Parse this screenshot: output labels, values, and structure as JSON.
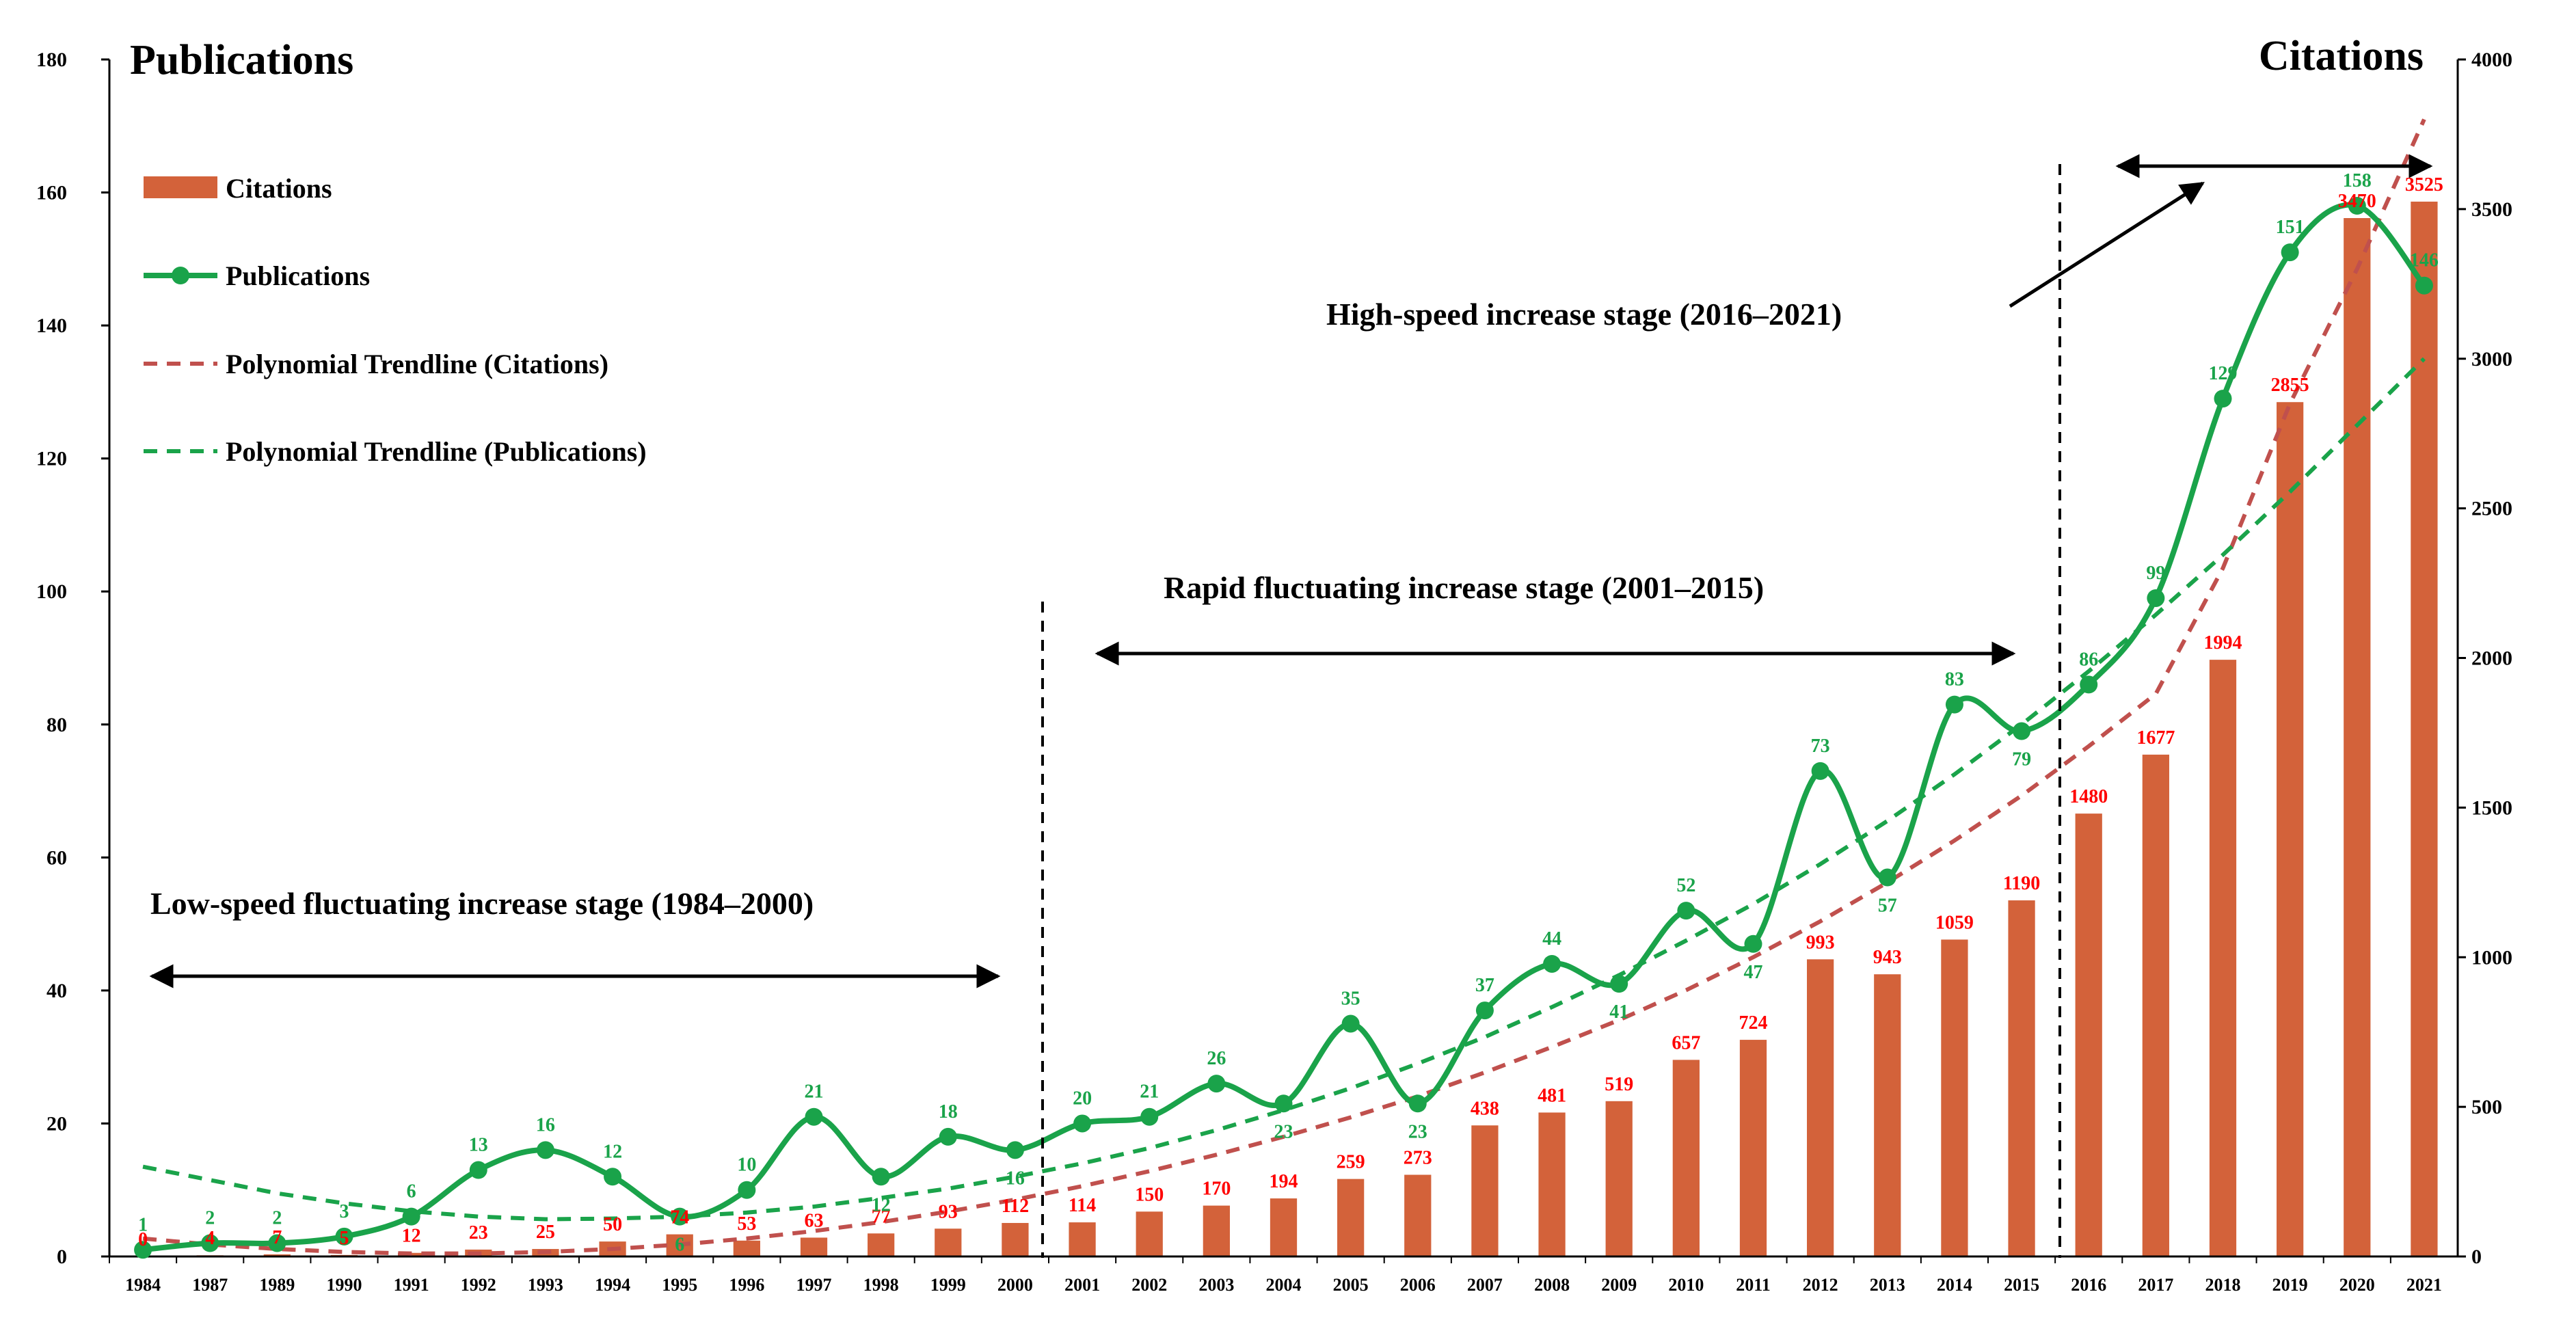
{
  "chart_data": {
    "type": "bar+line",
    "left_axis_title": "Publications",
    "right_axis_title": "Citations",
    "left_ylim": [
      0,
      180
    ],
    "left_ticks": [
      "0",
      "20",
      "40",
      "60",
      "80",
      "100",
      "120",
      "140",
      "160",
      "180"
    ],
    "right_ylim": [
      0,
      4000
    ],
    "right_ticks": [
      "0",
      "500",
      "1000",
      "1500",
      "2000",
      "2500",
      "3000",
      "3500",
      "4000"
    ],
    "categories": [
      "1984",
      "1987",
      "1989",
      "1990",
      "1991",
      "1992",
      "1993",
      "1994",
      "1995",
      "1996",
      "1997",
      "1998",
      "1999",
      "2000",
      "2001",
      "2002",
      "2003",
      "2004",
      "2005",
      "2006",
      "2007",
      "2008",
      "2009",
      "2010",
      "2011",
      "2012",
      "2013",
      "2014",
      "2015",
      "2016",
      "2017",
      "2018",
      "2019",
      "2020",
      "2021"
    ],
    "series": [
      {
        "name": "Citations",
        "type": "bar",
        "axis": "right",
        "color": "#d3623a",
        "values": [
          0,
          4,
          7,
          5,
          12,
          23,
          25,
          50,
          74,
          53,
          63,
          77,
          93,
          112,
          114,
          150,
          170,
          194,
          259,
          273,
          438,
          481,
          519,
          657,
          724,
          993,
          943,
          1059,
          1190,
          1480,
          1677,
          1994,
          2855,
          3470,
          3525
        ],
        "labels": [
          "0",
          "4",
          "7",
          "5",
          "12",
          "23",
          "25",
          "50",
          "74",
          "53",
          "63",
          "77",
          "93",
          "112",
          "114",
          "150",
          "170",
          "194",
          "259",
          "273",
          "438",
          "481",
          "519",
          "657",
          "724",
          "993",
          "943",
          "1059",
          "1190",
          "1480",
          "1677",
          "1994",
          "2855",
          "3470",
          "3525"
        ]
      },
      {
        "name": "Publications",
        "type": "line",
        "axis": "left",
        "color": "#1aa34a",
        "values": [
          1,
          2,
          2,
          3,
          6,
          13,
          16,
          12,
          6,
          10,
          21,
          12,
          18,
          16,
          20,
          21,
          26,
          23,
          35,
          23,
          37,
          44,
          41,
          52,
          47,
          73,
          57,
          83,
          79,
          86,
          99,
          129,
          151,
          158,
          146
        ],
        "labels": [
          "1",
          "2",
          "2",
          "3",
          "6",
          "13",
          "16",
          "12",
          "6",
          "10",
          "21",
          "12",
          "18",
          "16",
          "20",
          "21",
          "26",
          "23",
          "35",
          "23",
          "37",
          "44",
          "41",
          "52",
          "47",
          "73",
          "57",
          "83",
          "79",
          "86",
          "99",
          "129",
          "151",
          "158",
          "146"
        ]
      },
      {
        "name": "Polynomial Trendline (Citations)",
        "type": "trendline",
        "axis": "right",
        "color": "#c0504d",
        "values": [
          60,
          40,
          25,
          15,
          10,
          10,
          15,
          25,
          40,
          60,
          85,
          115,
          150,
          190,
          235,
          285,
          340,
          400,
          465,
          535,
          615,
          700,
          790,
          890,
          1000,
          1120,
          1250,
          1390,
          1540,
          1705,
          1880,
          2300,
          2850,
          3300,
          3800
        ]
      },
      {
        "name": "Polynomial Trendline (Publications)",
        "type": "trendline",
        "axis": "left",
        "color": "#1aa34a",
        "values": [
          13.5,
          11.5,
          9.5,
          8,
          6.8,
          6,
          5.6,
          5.7,
          6,
          6.6,
          7.5,
          8.8,
          10.2,
          12,
          14,
          16.3,
          19,
          22,
          25.3,
          29,
          33,
          37.5,
          42.3,
          47.5,
          53,
          59,
          65.5,
          72.5,
          80,
          88,
          96.5,
          105.5,
          115,
          125,
          135
        ]
      }
    ],
    "legend": [
      {
        "label": "Citations",
        "kind": "bar",
        "color": "#d3623a"
      },
      {
        "label": "Publications",
        "kind": "line-marker",
        "color": "#1aa34a"
      },
      {
        "label": "Polynomial Trendline (Citations)",
        "kind": "dashed",
        "color": "#c0504d"
      },
      {
        "label": "Polynomial Trendline (Publications)",
        "kind": "dashed",
        "color": "#1aa34a"
      }
    ],
    "legend_position": "top-left",
    "stages": [
      {
        "label": "Low-speed fluctuating increase stage (1984–2000)"
      },
      {
        "label": "Rapid fluctuating increase stage (2001–2015)"
      },
      {
        "label": "High-speed increase stage (2016–2021)"
      }
    ]
  }
}
